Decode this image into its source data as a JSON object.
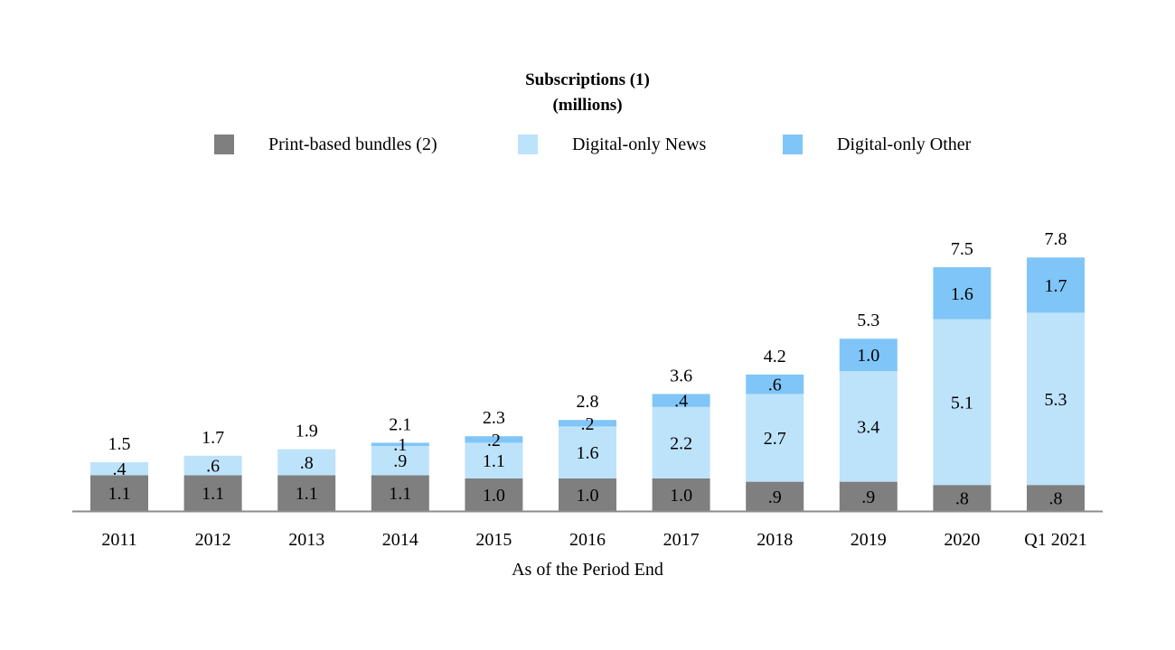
{
  "chart_data": {
    "type": "bar",
    "stacked": true,
    "title": "Subscriptions (1)",
    "subtitle": "(millions)",
    "xlabel": "As of the Period End",
    "ylabel": "",
    "ylim": [
      0,
      8
    ],
    "grid": false,
    "legend_placement": "top",
    "categories": [
      "2011",
      "2012",
      "2013",
      "2014",
      "2015",
      "2016",
      "2017",
      "2018",
      "2019",
      "2020",
      "Q1 2021"
    ],
    "series": [
      {
        "name": "Print-based bundles (2)",
        "color": "#7f7f7f",
        "values": [
          1.1,
          1.1,
          1.1,
          1.1,
          1.0,
          1.0,
          1.0,
          0.9,
          0.9,
          0.8,
          0.8
        ],
        "labels": [
          "1.1",
          "1.1",
          "1.1",
          "1.1",
          "1.0",
          "1.0",
          "1.0",
          ".9",
          ".9",
          ".8",
          ".8"
        ]
      },
      {
        "name": "Digital-only News",
        "color": "#bde3fb",
        "values": [
          0.4,
          0.6,
          0.8,
          0.9,
          1.1,
          1.6,
          2.2,
          2.7,
          3.4,
          5.1,
          5.3
        ],
        "labels": [
          ".4",
          ".6",
          ".8",
          ".9",
          "1.1",
          "1.6",
          "2.2",
          "2.7",
          "3.4",
          "5.1",
          "5.3"
        ]
      },
      {
        "name": "Digital-only Other",
        "color": "#80c5f7",
        "values": [
          0,
          0,
          0,
          0.1,
          0.2,
          0.2,
          0.4,
          0.6,
          1.0,
          1.6,
          1.7
        ],
        "labels": [
          "",
          "",
          "",
          ".1",
          ".2",
          ".2",
          ".4",
          ".6",
          "1.0",
          "1.6",
          "1.7"
        ]
      }
    ],
    "totals": [
      "1.5",
      "1.7",
      "1.9",
      "2.1",
      "2.3",
      "2.8",
      "3.6",
      "4.2",
      "5.3",
      "7.5",
      "7.8"
    ]
  }
}
